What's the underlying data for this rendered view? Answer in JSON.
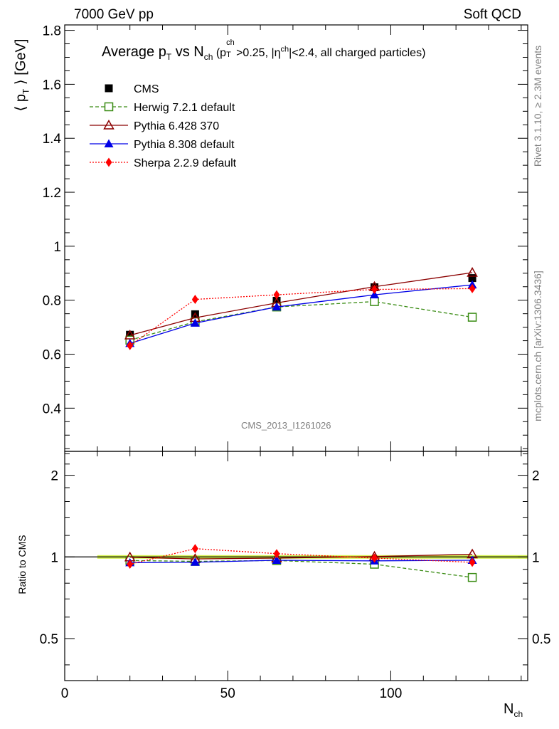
{
  "header": {
    "left": "7000 GeV pp",
    "right": "Soft QCD"
  },
  "side": {
    "rivet": "Rivet 3.1.10, ≥ 2.3M events",
    "mcplots": "mcplots.cern.ch [arXiv:1306.3436]"
  },
  "analysis_id": "CMS_2013_I1261026",
  "chart_data": [
    {
      "type": "line",
      "title": "Average p_T vs N_ch (p_T^ch>0.25, |η^ch|<2.4, all charged particles)",
      "title_parts": {
        "a": "Average p",
        "a_sub": "T",
        "b": " vs N",
        "b_sub": "ch",
        "c": " (p",
        "c_sup": "ch",
        "c_sub": "T",
        "d": ">0.25, |η",
        "d_sup": "ch",
        "e": "|<2.4, all charged particles)"
      },
      "ylabel": "⟨ p_T ⟩ [GeV]",
      "ylabel_parts": {
        "a": "⟨ p",
        "sub": "T",
        "b": " ⟩ [GeV]"
      },
      "xlim": [
        0,
        142
      ],
      "ylim": [
        0.24,
        1.82
      ],
      "yticks": [
        0.4,
        0.6,
        0.8,
        1,
        1.2,
        1.4,
        1.6,
        1.8
      ],
      "ytick_labels": [
        "0.4",
        "0.6",
        "0.8",
        "1",
        "1.2",
        "1.4",
        "1.6",
        "1.8"
      ],
      "legend_position": "top-left",
      "x": [
        20,
        40,
        65,
        95,
        125
      ],
      "series": [
        {
          "name": "CMS",
          "values": [
            0.672,
            0.748,
            0.798,
            0.848,
            0.882
          ],
          "color": "#000000",
          "marker": "square-filled",
          "line": "none"
        },
        {
          "name": "Herwig 7.2.1 default",
          "values": [
            0.652,
            0.72,
            0.775,
            0.795,
            0.737
          ],
          "color": "#3a8c14",
          "marker": "square-open",
          "line": "dashed"
        },
        {
          "name": "Pythia 6.428 370",
          "values": [
            0.67,
            0.735,
            0.79,
            0.85,
            0.902
          ],
          "color": "#8b0000",
          "marker": "triangle-open",
          "line": "solid"
        },
        {
          "name": "Pythia 8.308 default",
          "values": [
            0.64,
            0.715,
            0.775,
            0.82,
            0.857
          ],
          "color": "#0000e6",
          "marker": "triangle-filled",
          "line": "solid"
        },
        {
          "name": "Sherpa 2.2.9 default",
          "values": [
            0.632,
            0.803,
            0.82,
            0.84,
            0.843
          ],
          "color": "#ff0000",
          "marker": "diamond-filled",
          "line": "dotted"
        }
      ]
    },
    {
      "type": "line",
      "title": "",
      "xlabel": "N_ch",
      "xlabel_parts": {
        "a": "N",
        "sub": "ch"
      },
      "ylabel": "Ratio to CMS",
      "xlim": [
        0,
        142
      ],
      "ylim": [
        0.35,
        2.45
      ],
      "log_y": true,
      "xticks": [
        0,
        50,
        100
      ],
      "xtick_labels": [
        "0",
        "50",
        "100"
      ],
      "yticks": [
        0.5,
        1,
        2
      ],
      "ytick_labels": [
        "0.5",
        "1",
        "2"
      ],
      "reference_band": {
        "x": [
          10,
          142
        ],
        "low": 0.985,
        "high": 1.015,
        "color": "#ccee33"
      },
      "x": [
        20,
        40,
        65,
        95,
        125
      ],
      "series": [
        {
          "name": "Herwig 7.2.1 default",
          "values": [
            0.97,
            0.963,
            0.97,
            0.94,
            0.84
          ],
          "color": "#3a8c14",
          "marker": "square-open",
          "line": "dashed"
        },
        {
          "name": "Pythia 6.428 370",
          "values": [
            0.997,
            0.983,
            0.99,
            1.003,
            1.023
          ],
          "color": "#8b0000",
          "marker": "triangle-open",
          "line": "solid"
        },
        {
          "name": "Pythia 8.308 default",
          "values": [
            0.952,
            0.956,
            0.972,
            0.967,
            0.972
          ],
          "color": "#0000e6",
          "marker": "triangle-filled",
          "line": "solid"
        },
        {
          "name": "Sherpa 2.2.9 default",
          "values": [
            0.94,
            1.073,
            1.028,
            0.99,
            0.955
          ],
          "color": "#ff0000",
          "marker": "diamond-filled",
          "line": "dotted"
        }
      ]
    }
  ]
}
